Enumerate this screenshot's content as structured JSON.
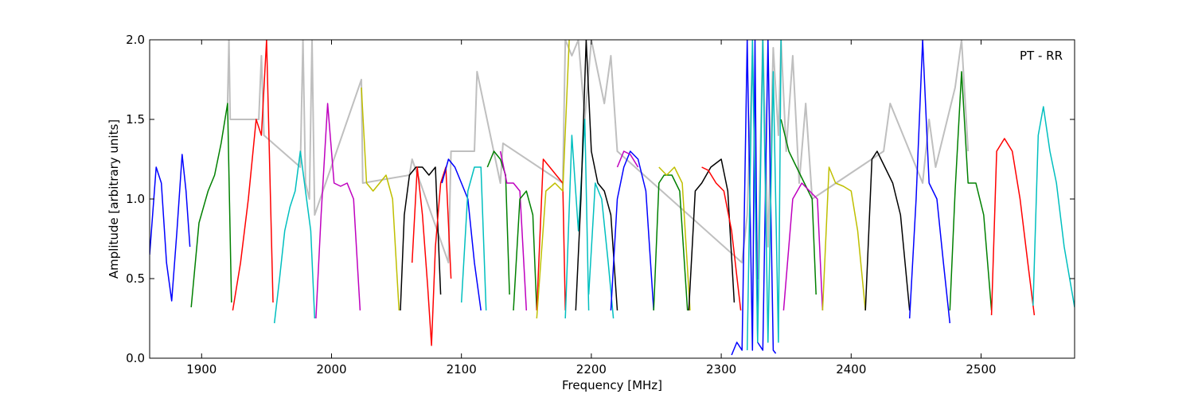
{
  "chart_data": {
    "type": "line",
    "panel_label": "PT - RR",
    "xlabel": "Frequency [MHz]",
    "ylabel": "Amplitude [arbitrary units]",
    "xlim": [
      1860,
      2572
    ],
    "ylim": [
      0.0,
      2.0
    ],
    "x_ticks": [
      1900,
      2000,
      2100,
      2200,
      2300,
      2400,
      2500
    ],
    "x_tick_labels": [
      "1900",
      "2000",
      "2100",
      "2200",
      "2300",
      "2400",
      "2500"
    ],
    "y_ticks": [
      0.0,
      0.5,
      1.0,
      1.5,
      2.0
    ],
    "y_tick_labels": [
      "0.0",
      "0.5",
      "1.0",
      "1.5",
      "2.0"
    ],
    "grid": false,
    "legend": "none",
    "background_series": {
      "color": "#bfbfbf",
      "x": [
        1920,
        1921,
        1922,
        1944,
        1946,
        1948,
        1976,
        1978,
        1980,
        1983,
        1985,
        1987,
        2023,
        2024,
        2060,
        2062,
        2090,
        2092,
        2110,
        2112,
        2130,
        2132,
        2178,
        2180,
        2185,
        2190,
        2195,
        2200,
        2205,
        2210,
        2215,
        2220,
        2316,
        2320,
        2324,
        2328,
        2332,
        2336,
        2340,
        2344,
        2346,
        2350,
        2355,
        2360,
        2365,
        2370,
        2425,
        2430,
        2455,
        2460,
        2465,
        2480,
        2485,
        2490
      ],
      "y": [
        1.6,
        2.0,
        1.5,
        1.5,
        1.9,
        1.4,
        1.2,
        2.0,
        1.1,
        1.0,
        2.0,
        0.9,
        1.75,
        1.1,
        1.15,
        1.25,
        0.6,
        1.3,
        1.3,
        1.8,
        1.1,
        1.35,
        1.1,
        2.0,
        1.9,
        2.0,
        1.5,
        2.0,
        1.8,
        1.6,
        1.9,
        1.3,
        0.6,
        0.9,
        1.9,
        0.5,
        2.0,
        0.7,
        1.95,
        1.4,
        2.0,
        1.3,
        1.9,
        1.1,
        1.6,
        1.0,
        1.3,
        1.6,
        1.1,
        1.5,
        1.2,
        1.7,
        2.0,
        1.3
      ]
    },
    "series": [
      {
        "color": "#0000ff",
        "x": [
          1860,
          1865,
          1869,
          1873,
          1877,
          1881,
          1885,
          1888,
          1891
        ],
        "y": [
          0.65,
          1.2,
          1.1,
          0.6,
          0.36,
          0.8,
          1.28,
          1.05,
          0.7
        ]
      },
      {
        "color": "#008000",
        "x": [
          1892,
          1898,
          1905,
          1910,
          1915,
          1920,
          1923
        ],
        "y": [
          0.32,
          0.85,
          1.05,
          1.15,
          1.35,
          1.6,
          0.35
        ]
      },
      {
        "color": "#ff0000",
        "x": [
          1924,
          1930,
          1936,
          1942,
          1946,
          1950,
          1955
        ],
        "y": [
          0.3,
          0.6,
          1.0,
          1.5,
          1.4,
          2.0,
          0.35
        ]
      },
      {
        "color": "#00bfbf",
        "x": [
          1956,
          1960,
          1964,
          1968,
          1972,
          1976,
          1980,
          1984,
          1987
        ],
        "y": [
          0.22,
          0.5,
          0.8,
          0.95,
          1.05,
          1.3,
          1.05,
          0.8,
          0.25
        ]
      },
      {
        "color": "#bf00bf",
        "x": [
          1988,
          1992,
          1997,
          2002,
          2007,
          2012,
          2017,
          2022
        ],
        "y": [
          0.25,
          0.9,
          1.6,
          1.1,
          1.08,
          1.1,
          1.0,
          0.3
        ]
      },
      {
        "color": "#bfbf00",
        "x": [
          2023,
          2027,
          2032,
          2037,
          2042,
          2047,
          2052
        ],
        "y": [
          1.7,
          1.1,
          1.05,
          1.1,
          1.15,
          1.0,
          0.3
        ]
      },
      {
        "color": "#000000",
        "x": [
          2053,
          2056,
          2060,
          2065,
          2070,
          2075,
          2080,
          2084
        ],
        "y": [
          0.3,
          0.9,
          1.15,
          1.2,
          1.2,
          1.15,
          1.2,
          0.4
        ]
      },
      {
        "color": "#ff0000",
        "x": [
          2062,
          2066,
          2070,
          2074,
          2077,
          2080,
          2084,
          2088,
          2092
        ],
        "y": [
          0.6,
          1.2,
          0.9,
          0.45,
          0.08,
          0.7,
          1.1,
          1.2,
          0.5
        ]
      },
      {
        "color": "#0000ff",
        "x": [
          2085,
          2090,
          2095,
          2100,
          2105,
          2110,
          2115
        ],
        "y": [
          1.1,
          1.25,
          1.2,
          1.1,
          1.0,
          0.6,
          0.3
        ]
      },
      {
        "color": "#00bfbf",
        "x": [
          2100,
          2105,
          2110,
          2115,
          2119
        ],
        "y": [
          0.35,
          1.05,
          1.2,
          1.2,
          0.3
        ]
      },
      {
        "color": "#008000",
        "x": [
          2120,
          2125,
          2130,
          2134,
          2137
        ],
        "y": [
          1.2,
          1.3,
          1.25,
          1.15,
          0.4
        ]
      },
      {
        "color": "#bf00bf",
        "x": [
          2130,
          2135,
          2140,
          2145,
          2150
        ],
        "y": [
          1.3,
          1.1,
          1.1,
          1.05,
          0.3
        ]
      },
      {
        "color": "#008000",
        "x": [
          2140,
          2145,
          2150,
          2155,
          2158
        ],
        "y": [
          0.3,
          1.0,
          1.05,
          0.9,
          0.3
        ]
      },
      {
        "color": "#ff0000",
        "x": [
          2158,
          2163,
          2168,
          2173,
          2178,
          2180
        ],
        "y": [
          0.3,
          1.25,
          1.2,
          1.15,
          1.1,
          0.3
        ]
      },
      {
        "color": "#bfbf00",
        "x": [
          2158,
          2165,
          2172,
          2178,
          2183
        ],
        "y": [
          0.25,
          1.05,
          1.1,
          1.05,
          2.0
        ]
      },
      {
        "color": "#00bfbf",
        "x": [
          2180,
          2185,
          2190,
          2195,
          2198
        ],
        "y": [
          0.25,
          1.4,
          0.8,
          1.5,
          0.3
        ]
      },
      {
        "color": "#000000",
        "x": [
          2188,
          2192,
          2196,
          2200,
          2205,
          2210,
          2215,
          2220
        ],
        "y": [
          0.3,
          1.0,
          2.0,
          1.3,
          1.1,
          1.05,
          0.9,
          0.3
        ]
      },
      {
        "color": "#00bfbf",
        "x": [
          2198,
          2203,
          2208,
          2213,
          2217
        ],
        "y": [
          0.4,
          1.1,
          1.0,
          0.6,
          0.25
        ]
      },
      {
        "color": "#0000ff",
        "x": [
          2215,
          2220,
          2225,
          2230,
          2236,
          2242,
          2248
        ],
        "y": [
          0.3,
          1.0,
          1.2,
          1.3,
          1.25,
          1.05,
          0.3
        ]
      },
      {
        "color": "#bf00bf",
        "x": [
          2220,
          2225,
          2230,
          2236
        ],
        "y": [
          1.2,
          1.3,
          1.28,
          1.2
        ]
      },
      {
        "color": "#008000",
        "x": [
          2248,
          2252,
          2256,
          2262,
          2268,
          2274
        ],
        "y": [
          0.3,
          1.1,
          1.15,
          1.15,
          1.05,
          0.3
        ]
      },
      {
        "color": "#bfbf00",
        "x": [
          2252,
          2258,
          2264,
          2270,
          2276
        ],
        "y": [
          1.2,
          1.15,
          1.2,
          1.1,
          0.3
        ]
      },
      {
        "color": "#000000",
        "x": [
          2275,
          2280,
          2285,
          2292,
          2300,
          2305,
          2310
        ],
        "y": [
          0.3,
          1.05,
          1.1,
          1.2,
          1.25,
          1.05,
          0.35
        ]
      },
      {
        "color": "#ff0000",
        "x": [
          2285,
          2290,
          2296,
          2302,
          2308,
          2315
        ],
        "y": [
          1.2,
          1.18,
          1.1,
          1.05,
          0.8,
          0.3
        ]
      },
      {
        "color": "#0000ff",
        "x": [
          2308,
          2312,
          2316,
          2320,
          2324,
          2326,
          2328,
          2332,
          2336,
          2340,
          2342
        ],
        "y": [
          0.02,
          0.1,
          0.05,
          2.0,
          0.05,
          2.0,
          0.1,
          0.05,
          2.0,
          0.05,
          0.03
        ]
      },
      {
        "color": "#00bfbf",
        "x": [
          2320,
          2324,
          2328,
          2332,
          2336,
          2340,
          2344,
          2346
        ],
        "y": [
          0.05,
          2.0,
          0.1,
          2.0,
          0.1,
          1.8,
          0.1,
          2.0
        ]
      },
      {
        "color": "#008000",
        "x": [
          2346,
          2352,
          2358,
          2364,
          2370,
          2373
        ],
        "y": [
          1.5,
          1.3,
          1.2,
          1.1,
          1.0,
          0.4
        ]
      },
      {
        "color": "#bf00bf",
        "x": [
          2348,
          2355,
          2362,
          2368,
          2374,
          2378
        ],
        "y": [
          0.3,
          1.0,
          1.1,
          1.05,
          1.0,
          0.3
        ]
      },
      {
        "color": "#bfbf00",
        "x": [
          2378,
          2383,
          2388,
          2394,
          2400,
          2405,
          2411
        ],
        "y": [
          0.3,
          1.2,
          1.1,
          1.08,
          1.05,
          0.8,
          0.3
        ]
      },
      {
        "color": "#000000",
        "x": [
          2411,
          2416,
          2420,
          2426,
          2432,
          2438,
          2445
        ],
        "y": [
          0.3,
          1.25,
          1.3,
          1.2,
          1.1,
          0.9,
          0.3
        ]
      },
      {
        "color": "#0000ff",
        "x": [
          2445,
          2450,
          2455,
          2460,
          2466,
          2471,
          2476
        ],
        "y": [
          0.25,
          1.0,
          2.0,
          1.1,
          1.0,
          0.6,
          0.22
        ]
      },
      {
        "color": "#008000",
        "x": [
          2476,
          2480,
          2485,
          2490,
          2496,
          2502,
          2508
        ],
        "y": [
          0.3,
          1.05,
          1.8,
          1.1,
          1.1,
          0.9,
          0.3
        ]
      },
      {
        "color": "#ff0000",
        "x": [
          2508,
          2512,
          2518,
          2524,
          2530,
          2536,
          2541
        ],
        "y": [
          0.27,
          1.3,
          1.38,
          1.3,
          1.0,
          0.6,
          0.27
        ]
      },
      {
        "color": "#00bfbf",
        "x": [
          2540,
          2544,
          2548,
          2553,
          2558,
          2564,
          2572
        ],
        "y": [
          0.33,
          1.4,
          1.58,
          1.3,
          1.1,
          0.7,
          0.32
        ]
      }
    ]
  }
}
